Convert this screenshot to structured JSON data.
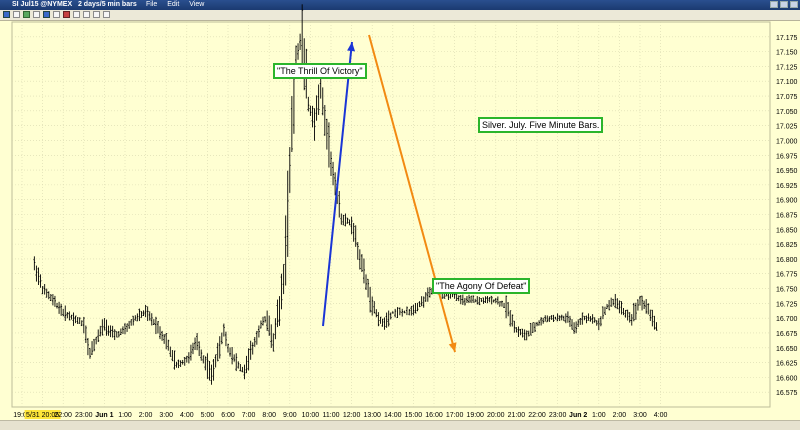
{
  "window": {
    "title": "SI Jul15 @NYMEX",
    "interval": "2 days/5 min bars",
    "menu": [
      "File",
      "Edit",
      "View"
    ]
  },
  "colors": {
    "background": "#ffffd2",
    "candle": "#000000",
    "up_arrow": "#1a35d6",
    "down_arrow": "#f28a12",
    "annotation_border": "#2bb52b",
    "highlight_tick": "#ffe63a"
  },
  "annotations": {
    "thrill": "\"The Thrill Of Victory\"",
    "agony": "\"The Agony Of Defeat\"",
    "caption": "Silver. July. Five Minute Bars."
  },
  "chart_data": {
    "type": "line",
    "ylim": [
      16.55,
      17.2
    ],
    "y_ticks": [
      "16.575",
      "16.600",
      "16.625",
      "16.650",
      "16.675",
      "16.700",
      "16.725",
      "16.750",
      "16.775",
      "16.800",
      "16.825",
      "16.850",
      "16.875",
      "16.900",
      "16.925",
      "16.950",
      "16.975",
      "17.000",
      "17.025",
      "17.050",
      "17.075",
      "17.100",
      "17.125",
      "17.150",
      "17.175"
    ],
    "x_ticks": [
      "19:00",
      "5/31 20:05",
      "22:00",
      "23:00",
      "Jun 1",
      "1:00",
      "2:00",
      "3:00",
      "4:00",
      "5:00",
      "6:00",
      "7:00",
      "8:00",
      "9:00",
      "10:00",
      "11:00",
      "12:00",
      "13:00",
      "14:00",
      "15:00",
      "16:00",
      "17:00",
      "19:00",
      "20:00",
      "21:00",
      "22:00",
      "23:00",
      "Jun 2",
      "1:00",
      "2:00",
      "3:00",
      "4:00"
    ],
    "highlighted_tick": "5/31 20:05",
    "grid": true,
    "series": [
      {
        "x": [
          0.6,
          1.0,
          1.5,
          2.0,
          2.5,
          3.0,
          3.3,
          3.7,
          4.0,
          4.5,
          5.0,
          5.5,
          6.0,
          6.5,
          7.0,
          7.5,
          8.0,
          8.2,
          8.5,
          8.8,
          9.0,
          9.2,
          9.4,
          9.6,
          9.8,
          10.0,
          10.2,
          10.5,
          10.8,
          11.0,
          11.3,
          11.6,
          11.9,
          12.2,
          12.5,
          12.8,
          13.0,
          13.3,
          13.6,
          13.9,
          14.2,
          14.5,
          14.8,
          15.0,
          15.5,
          16.0,
          16.5,
          17.0,
          17.5,
          18.0,
          18.8,
          19.5,
          20.0,
          20.5,
          21.0,
          21.3,
          21.6,
          22.0,
          22.5,
          23.0,
          23.5,
          24.0,
          24.5,
          25.0,
          25.5,
          26.0,
          26.5,
          26.8,
          27.2,
          27.6,
          28.0,
          28.4,
          28.8,
          29.2,
          29.6,
          30.0,
          30.3,
          30.6,
          30.9
        ],
        "y": [
          16.79,
          16.75,
          16.73,
          16.71,
          16.7,
          16.69,
          16.64,
          16.67,
          16.69,
          16.67,
          16.68,
          16.7,
          16.71,
          16.69,
          16.66,
          16.62,
          16.63,
          16.64,
          16.66,
          16.63,
          16.62,
          16.6,
          16.63,
          16.65,
          16.68,
          16.65,
          16.64,
          16.62,
          16.61,
          16.63,
          16.66,
          16.69,
          16.7,
          16.66,
          16.72,
          16.8,
          16.95,
          17.14,
          17.18,
          17.06,
          17.03,
          17.09,
          17.02,
          16.96,
          16.87,
          16.86,
          16.79,
          16.72,
          16.69,
          16.71,
          16.71,
          16.73,
          16.75,
          16.74,
          16.74,
          16.73,
          16.73,
          16.73,
          16.73,
          16.73,
          16.72,
          16.68,
          16.67,
          16.69,
          16.7,
          16.7,
          16.7,
          16.68,
          16.7,
          16.7,
          16.69,
          16.72,
          16.73,
          16.71,
          16.7,
          16.73,
          16.72,
          16.7,
          16.68
        ]
      }
    ]
  }
}
